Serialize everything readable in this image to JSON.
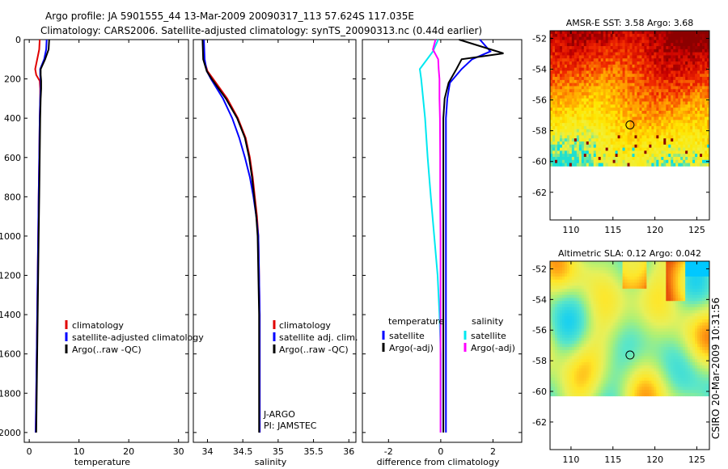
{
  "header": {
    "line1": "Argo profile: JA 5901555_44 13-Mar-2009 20090317_113 57.624S 117.035E",
    "line2": "Climatology: CARS2006. Satellite-adjusted climatology: synTS_20090313.nc (0.44d earlier)"
  },
  "side_label": "CSIRO 20-Mar-2009 10:31:56",
  "colors": {
    "red": "#e00000",
    "blue": "#0000ff",
    "black": "#000000",
    "cyan": "#00e8f0",
    "magenta": "#ff00ff"
  },
  "chart_data": [
    {
      "type": "line",
      "name": "temperature",
      "xlabel": "temperature",
      "xlim": [
        -1,
        32
      ],
      "ylim": [
        0,
        2050
      ],
      "xticks": [
        0,
        10,
        20,
        30
      ],
      "yticks": [
        0,
        200,
        400,
        600,
        800,
        1000,
        1200,
        1400,
        1600,
        1800,
        2000
      ],
      "series": [
        {
          "name": "climatology",
          "color": "red",
          "x": [
            2.1,
            2.0,
            1.6,
            1.2,
            1.4,
            2.1,
            2.2,
            2.2,
            2.1,
            2.0,
            1.9,
            1.8,
            1.7,
            1.6,
            1.5,
            1.4,
            1.3
          ],
          "y": [
            0,
            50,
            100,
            150,
            180,
            210,
            250,
            300,
            400,
            600,
            800,
            1000,
            1200,
            1400,
            1600,
            1800,
            2000
          ]
        },
        {
          "name": "satellite-adjusted climatology",
          "color": "blue",
          "x": [
            3.5,
            3.4,
            3.0,
            2.2,
            2.2,
            2.3,
            2.3,
            2.2,
            2.1,
            2.0,
            1.9,
            1.8,
            1.7,
            1.6,
            1.5,
            1.4,
            1.3
          ],
          "y": [
            0,
            50,
            100,
            150,
            180,
            210,
            250,
            300,
            400,
            600,
            800,
            1000,
            1200,
            1400,
            1600,
            1800,
            2000
          ]
        },
        {
          "name": "Argo(..raw -QC)",
          "color": "black",
          "x": [
            4.0,
            3.9,
            3.2,
            2.3,
            2.3,
            2.4,
            2.4,
            2.3,
            2.2,
            2.1,
            2.0,
            1.9,
            1.8,
            1.7,
            1.6,
            1.5,
            1.4
          ],
          "y": [
            0,
            50,
            100,
            150,
            180,
            210,
            250,
            300,
            400,
            600,
            800,
            1000,
            1200,
            1400,
            1600,
            1800,
            2000
          ]
        }
      ],
      "legend": [
        "climatology",
        "satellite-adjusted climatology",
        "Argo(..raw -QC)"
      ]
    },
    {
      "type": "line",
      "name": "salinity",
      "xlabel": "salinity",
      "xlim": [
        33.8,
        36.1
      ],
      "ylim": [
        0,
        2050
      ],
      "xticks": [
        34,
        34.5,
        35,
        35.5,
        36
      ],
      "yticks": [
        0,
        200,
        400,
        600,
        800,
        1000,
        1200,
        1400,
        1600,
        1800,
        2000
      ],
      "series": [
        {
          "name": "climatology",
          "color": "red",
          "x": [
            33.93,
            33.95,
            34.0,
            34.08,
            34.28,
            34.43,
            34.54,
            34.6,
            34.64,
            34.67,
            34.7,
            34.72,
            34.73,
            34.74,
            34.74,
            34.74,
            34.74
          ],
          "y": [
            0,
            100,
            160,
            200,
            300,
            400,
            500,
            600,
            700,
            800,
            900,
            1000,
            1200,
            1400,
            1600,
            1800,
            2000
          ]
        },
        {
          "name": "satellite adj. clim.",
          "color": "blue",
          "x": [
            33.95,
            33.96,
            33.99,
            34.05,
            34.22,
            34.35,
            34.45,
            34.53,
            34.6,
            34.65,
            34.69,
            34.72,
            34.73,
            34.74,
            34.74,
            34.74,
            34.74
          ],
          "y": [
            0,
            100,
            160,
            200,
            300,
            400,
            500,
            600,
            700,
            800,
            900,
            1000,
            1200,
            1400,
            1600,
            1800,
            2000
          ]
        },
        {
          "name": "Argo(..raw -QC)",
          "color": "black",
          "x": [
            33.93,
            33.94,
            33.99,
            34.06,
            34.26,
            34.42,
            34.53,
            34.59,
            34.63,
            34.66,
            34.69,
            34.71,
            34.72,
            34.73,
            34.73,
            34.73,
            34.73
          ],
          "y": [
            0,
            100,
            160,
            200,
            300,
            400,
            500,
            600,
            700,
            800,
            900,
            1000,
            1200,
            1400,
            1600,
            1800,
            2000
          ]
        }
      ],
      "legend": [
        "climatology",
        "satellite adj. clim.",
        "Argo(..raw -QC)"
      ],
      "annotation": [
        "J-ARGO",
        "PI: JAMSTEC"
      ]
    },
    {
      "type": "line",
      "name": "difference",
      "xlabel": "difference from climatology",
      "xlim": [
        -3,
        3.1
      ],
      "ylim": [
        0,
        2050
      ],
      "xticks": [
        -2,
        0,
        2
      ],
      "yticks": [
        0,
        200,
        400,
        600,
        800,
        1000,
        1200,
        1400,
        1600,
        1800,
        2000
      ],
      "series": [
        {
          "name": "temperature satellite",
          "color": "blue",
          "x": [
            1.5,
            1.9,
            1.2,
            0.8,
            0.35,
            0.25,
            0.2,
            0.2,
            0.2,
            0.2,
            0.2,
            0.2,
            0.2
          ],
          "y": [
            0,
            60,
            100,
            150,
            220,
            300,
            400,
            600,
            800,
            1000,
            1400,
            1800,
            2000
          ]
        },
        {
          "name": "temperature Argo(-adj)",
          "color": "black",
          "x": [
            0.7,
            2.4,
            0.8,
            0.6,
            0.3,
            0.15,
            0.1,
            0.1,
            0.1,
            0.1,
            0.1,
            0.1,
            0.1
          ],
          "y": [
            0,
            70,
            100,
            150,
            220,
            300,
            400,
            600,
            800,
            1000,
            1400,
            1800,
            2000
          ]
        },
        {
          "name": "salinity satellite",
          "color": "cyan",
          "x": [
            -0.1,
            -0.3,
            -0.8,
            -0.75,
            -0.6,
            -0.5,
            -0.38,
            -0.25,
            -0.12,
            -0.05,
            0.0,
            0.0,
            0.0
          ],
          "y": [
            0,
            60,
            150,
            200,
            400,
            600,
            800,
            1000,
            1200,
            1400,
            1600,
            1800,
            2000
          ]
        },
        {
          "name": "salinity Argo(-adj)",
          "color": "magenta",
          "x": [
            -0.2,
            -0.3,
            -0.1,
            -0.08,
            -0.05,
            -0.05,
            -0.03,
            -0.02,
            -0.02,
            -0.01,
            -0.01,
            -0.01,
            -0.01
          ],
          "y": [
            0,
            50,
            100,
            150,
            200,
            300,
            400,
            600,
            800,
            1000,
            1400,
            1800,
            2000
          ]
        }
      ],
      "legend_headers": [
        "temperature",
        "salinity"
      ],
      "legend_temperature": [
        "satellite",
        "Argo(-adj)"
      ],
      "legend_salinity": [
        "satellite",
        "Argo(-adj)"
      ]
    },
    {
      "type": "heatmap",
      "name": "sst_map",
      "title": "AMSR-E SST: 3.58 Argo: 3.68",
      "xlim": [
        107.5,
        126.5
      ],
      "ylim": [
        -63.8,
        -51.5
      ],
      "xticks": [
        110,
        115,
        120,
        125
      ],
      "yticks": [
        -52,
        -54,
        -56,
        -58,
        -60,
        -62
      ],
      "data_bottom": -60.3,
      "float_position": {
        "lon": 117.035,
        "lat": -57.624
      }
    },
    {
      "type": "heatmap",
      "name": "sla_map",
      "title": "Altimetric SLA: 0.12 Argo: 0.042",
      "xlim": [
        107.5,
        126.5
      ],
      "ylim": [
        -63.8,
        -51.5
      ],
      "xticks": [
        110,
        115,
        120,
        125
      ],
      "yticks": [
        -52,
        -54,
        -56,
        -58,
        -60,
        -62
      ],
      "data_bottom": -60.3,
      "float_position": {
        "lon": 117.035,
        "lat": -57.624
      }
    }
  ]
}
